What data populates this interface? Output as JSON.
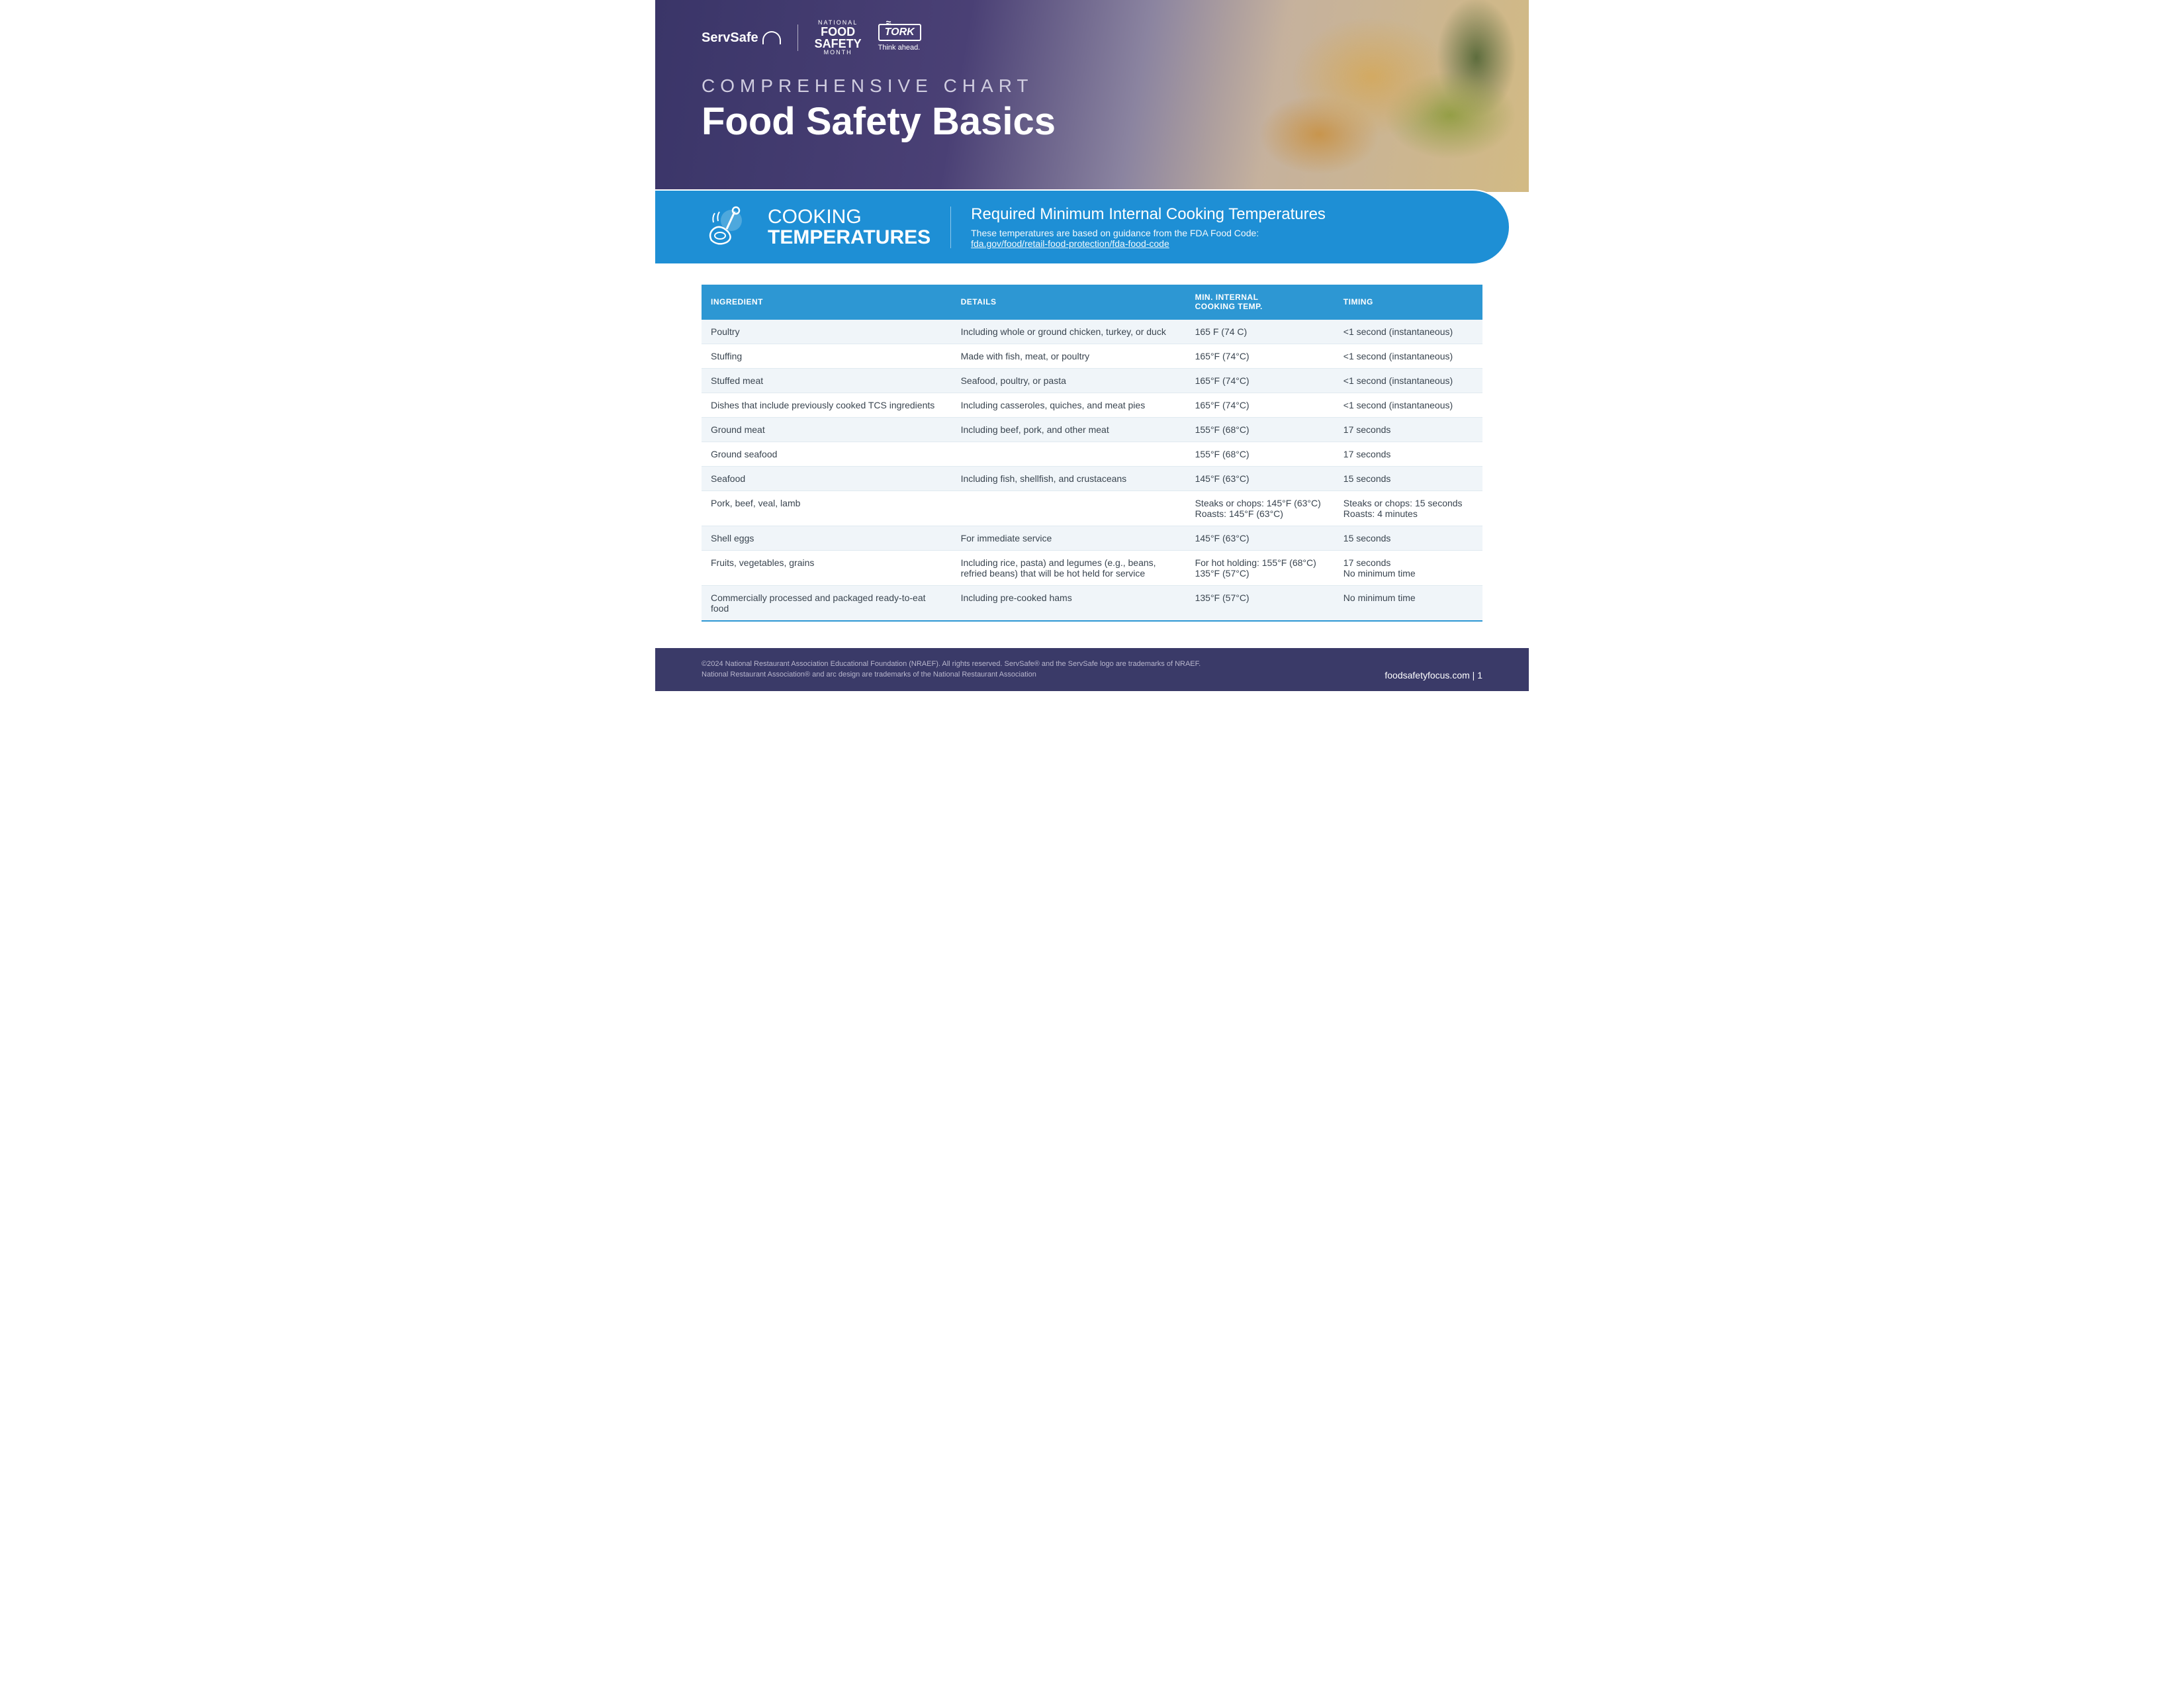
{
  "hero": {
    "logos": {
      "servsafe": "ServSafe",
      "nfsm_top": "NATIONAL",
      "nfsm_mid1": "FOOD",
      "nfsm_mid2": "SAFETY",
      "nfsm_bottom": "MONTH",
      "tork": "TORK",
      "tork_tag": "Think ahead."
    },
    "eyebrow": "COMPREHENSIVE CHART",
    "title": "Food Safety Basics"
  },
  "band": {
    "left_line1": "COOKING",
    "left_line2": "TEMPERATURES",
    "right_heading": "Required Minimum Internal Cooking Temperatures",
    "right_sub": "These temperatures are based on guidance from the FDA Food Code:",
    "right_link": "fda.gov/food/retail-food-protection/fda-food-code"
  },
  "table": {
    "headers": {
      "ingredient": "INGREDIENT",
      "details": "DETAILS",
      "temp": "MIN. INTERNAL\nCOOKING TEMP.",
      "timing": "TIMING"
    },
    "rows": [
      {
        "ingredient": "Poultry",
        "details": "Including whole or ground chicken, turkey, or duck",
        "temp": "165 F (74 C)",
        "timing": "<1  second (instantaneous)"
      },
      {
        "ingredient": "Stuffing",
        "details": "Made with fish, meat, or poultry",
        "temp": "165°F (74°C)",
        "timing": "<1  second (instantaneous)"
      },
      {
        "ingredient": "Stuffed meat",
        "details": "Seafood, poultry, or pasta",
        "temp": "165°F (74°C)",
        "timing": "<1  second (instantaneous)"
      },
      {
        "ingredient": "Dishes that include previously cooked TCS ingredients",
        "details": "Including casseroles, quiches, and meat pies",
        "temp": "165°F (74°C)",
        "timing": "<1  second (instantaneous)"
      },
      {
        "ingredient": "Ground meat",
        "details": "Including beef, pork, and other meat",
        "temp": "155°F (68°C)",
        "timing": "17 seconds"
      },
      {
        "ingredient": "Ground seafood",
        "details": "",
        "temp": "155°F (68°C)",
        "timing": "17 seconds"
      },
      {
        "ingredient": "Seafood",
        "details": "Including fish, shellfish, and crustaceans",
        "temp": "145°F (63°C)",
        "timing": "15 seconds"
      },
      {
        "ingredient": "Pork, beef, veal, lamb",
        "details": "",
        "temp": "Steaks or chops: 145°F (63°C)\nRoasts: 145°F (63°C)",
        "timing": "Steaks or chops: 15 seconds\nRoasts: 4 minutes"
      },
      {
        "ingredient": "Shell eggs",
        "details": "For immediate service",
        "temp": "145°F (63°C)",
        "timing": "15 seconds"
      },
      {
        "ingredient": "Fruits, vegetables, grains",
        "details": "Including rice, pasta) and legumes (e.g., beans, refried beans) that will be hot held for service",
        "temp": "For hot holding: 155°F (68°C)\n135°F (57°C)",
        "timing": "17 seconds\nNo minimum time"
      },
      {
        "ingredient": "Commercially processed and packaged ready-to-eat food",
        "details": "Including pre-cooked hams",
        "temp": "135°F (57°C)",
        "timing": "No minimum time"
      }
    ]
  },
  "footer": {
    "copy": "©2024 National Restaurant Association Educational Foundation (NRAEF). All rights reserved. ServSafe® and the ServSafe logo are trademarks of NRAEF. National Restaurant Association® and arc design are trademarks of the National Restaurant Association",
    "site": "foodsafetyfocus.com",
    "page": "1"
  },
  "colors": {
    "band_bg": "#1e8fd5",
    "header_bg": "#2d97d3",
    "row_alt": "#f0f5f9",
    "footer_bg": "#3a3a68",
    "hero_bg": "#3a3568"
  }
}
